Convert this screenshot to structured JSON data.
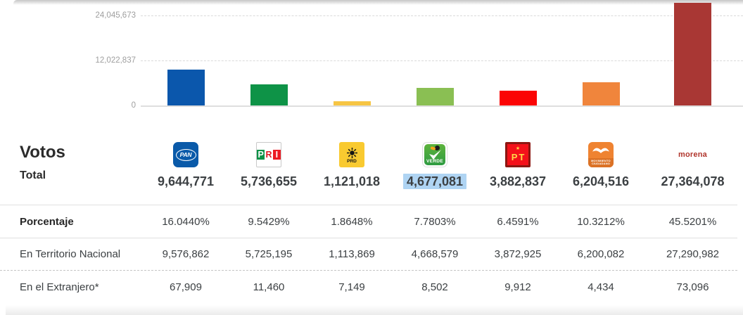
{
  "chart_data": {
    "type": "bar",
    "title": "",
    "xlabel": "",
    "ylabel": "",
    "categories": [
      "PAN",
      "PRI",
      "PRD",
      "VERDE",
      "PT",
      "Movimiento Ciudadano",
      "morena"
    ],
    "values": [
      9644771,
      5736655,
      1121018,
      4677081,
      3882837,
      6204516,
      27364078
    ],
    "bar_colors": [
      "#0b57ac",
      "#0e9347",
      "#f6c544",
      "#8abf53",
      "#fb0505",
      "#f0853c",
      "#a93734"
    ],
    "yticks": [
      0,
      12022837,
      24045673
    ],
    "ytick_labels": [
      "0",
      "12,022,837",
      "24,045,673"
    ],
    "ylim": [
      0,
      28200000
    ],
    "grid": "horizontal-dashed",
    "legend": "none"
  },
  "votes_table": {
    "title": "Votos",
    "total_row_label": "Total",
    "totals": [
      "9,644,771",
      "5,736,655",
      "1,121,018",
      "4,677,081",
      "3,882,837",
      "6,204,516",
      "27,364,078"
    ],
    "highlighted_total_index": 3,
    "highlighted_total": "4,677,081",
    "highlight_color": "#afd4f3",
    "rows": [
      {
        "label": "Porcentaje",
        "values": [
          "16.0440%",
          "9.5429%",
          "1.8648%",
          "7.7803%",
          "6.4591%",
          "10.3212%",
          "45.5201%"
        ]
      },
      {
        "label": "En Territorio Nacional",
        "values": [
          "9,576,862",
          "5,725,195",
          "1,113,869",
          "4,668,579",
          "3,872,925",
          "6,200,082",
          "27,290,982"
        ]
      },
      {
        "label": "En el Extranjero*",
        "values": [
          "67,909",
          "11,460",
          "7,149",
          "8,502",
          "9,912",
          "4,434",
          "73,096"
        ]
      }
    ],
    "parties": [
      {
        "name": "PAN",
        "logo_text": "PAN",
        "color": "#0b57ac"
      },
      {
        "name": "PRI",
        "logo_text": "PRI",
        "letters": [
          "P",
          "R",
          "I"
        ],
        "color": "#0e9347"
      },
      {
        "name": "PRD",
        "logo_text": "PRD",
        "color": "#f6c544"
      },
      {
        "name": "VERDE",
        "logo_text": "VERDE",
        "color": "#8abf53"
      },
      {
        "name": "PT",
        "logo_text": "PT",
        "color": "#fb0505"
      },
      {
        "name": "Movimiento Ciudadano",
        "logo_line1": "MOVIMIENTO",
        "logo_line2": "CIUDADANO",
        "color": "#f0853c"
      },
      {
        "name": "morena",
        "logo_text": "morena",
        "color": "#a93734"
      }
    ]
  }
}
